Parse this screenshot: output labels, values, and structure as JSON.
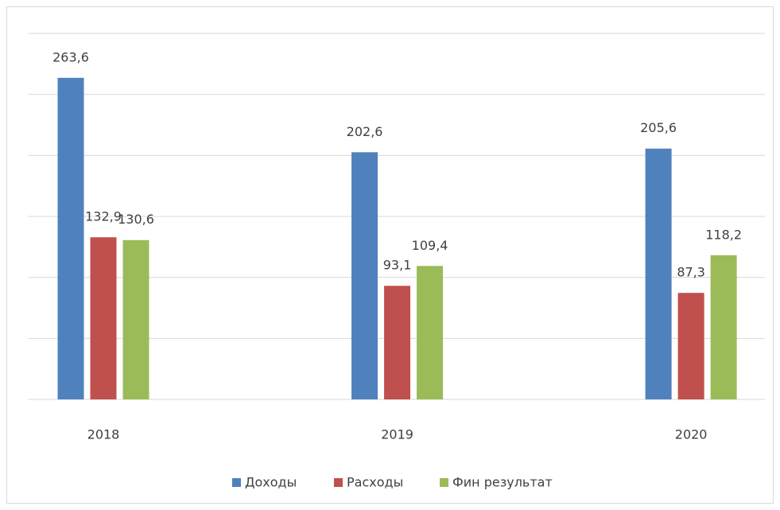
{
  "chart_data": {
    "type": "bar",
    "categories": [
      "2018",
      "2019",
      "2020"
    ],
    "series": [
      {
        "name": "Доходы",
        "color": "#4f81bd",
        "values": [
          263.6,
          202.6,
          205.6
        ],
        "value_labels": [
          "263,6",
          "202,6",
          "205,6"
        ]
      },
      {
        "name": "Расходы",
        "color": "#c0504d",
        "values": [
          132.9,
          93.1,
          87.3
        ],
        "value_labels": [
          "132,9",
          "93,1",
          "87,3"
        ]
      },
      {
        "name": "Фин результат",
        "color": "#9bbb59",
        "values": [
          130.6,
          109.4,
          118.2
        ],
        "value_labels": [
          "130,6",
          "109,4",
          "118,2"
        ]
      }
    ],
    "ylim": [
      0,
      300
    ],
    "yticks": [
      0,
      50,
      100,
      150,
      200,
      250,
      300
    ],
    "grid": true,
    "legend": "bottom"
  }
}
